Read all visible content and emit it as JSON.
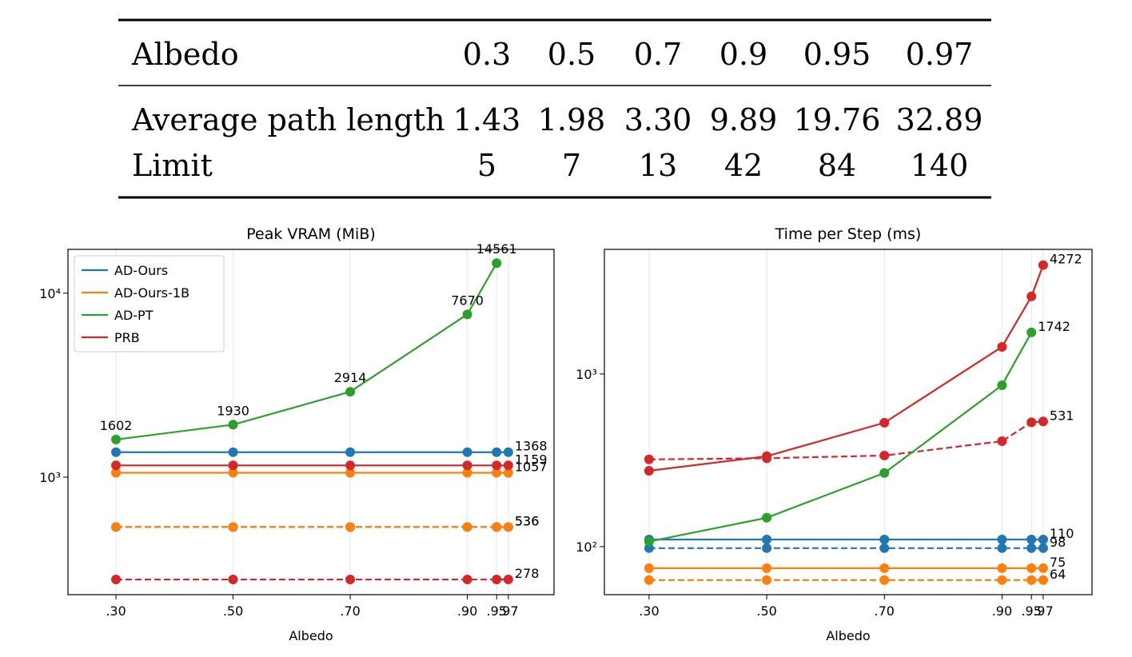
{
  "table": {
    "header": [
      "Albedo",
      "0.3",
      "0.5",
      "0.7",
      "0.9",
      "0.95",
      "0.97"
    ],
    "rows": [
      [
        "Average path length",
        "1.43",
        "1.98",
        "3.30",
        "9.89",
        "19.76",
        "32.89"
      ],
      [
        "Limit",
        "5",
        "7",
        "13",
        "42",
        "84",
        "140"
      ]
    ]
  },
  "chart_data": [
    {
      "type": "line",
      "title": "Peak VRAM (MiB)",
      "xlabel": "Albedo",
      "x": [
        0.3,
        0.5,
        0.7,
        0.9,
        0.95,
        0.97
      ],
      "xlim": [
        0.218,
        1.048
      ],
      "xticks": [
        {
          "value": 0.3,
          "label": ".30"
        },
        {
          "value": 0.5,
          "label": ".50"
        },
        {
          "value": 0.7,
          "label": ".70"
        },
        {
          "value": 0.9,
          "label": ".90"
        },
        {
          "value": 0.95,
          "label": ".95"
        },
        {
          "value": 0.97,
          "label": ".97"
        }
      ],
      "yscale": "log",
      "ylim": [
        230,
        17300
      ],
      "yticks": [
        {
          "value": 1000,
          "label": "10³"
        },
        {
          "value": 10000,
          "label": "10⁴"
        }
      ],
      "grid": "x",
      "legend": "upper left",
      "series": [
        {
          "name": "AD-Ours",
          "color": "#1f77b4",
          "linestyle": "solid",
          "data_labels": "last",
          "values": [
            1368,
            1368,
            1368,
            1368,
            1368,
            1368
          ]
        },
        {
          "name": "AD-Ours-1B",
          "color": "#ff7f0e",
          "linestyle": "solid",
          "data_labels": "last",
          "values": [
            1057,
            1057,
            1057,
            1057,
            1057,
            1057
          ]
        },
        {
          "name": "AD-PT",
          "color": "#2ca02c",
          "linestyle": "solid",
          "data_labels": "all",
          "values": [
            1602,
            1930,
            2914,
            7670,
            14561,
            null
          ]
        },
        {
          "name": "PRB",
          "color": "#d62728",
          "linestyle": "solid",
          "data_labels": "last",
          "values": [
            1159,
            1159,
            1159,
            1159,
            1159,
            1159
          ]
        },
        {
          "color": "#1f77b4",
          "linestyle": "dashed",
          "data_labels": "last",
          "values": [
            536,
            536,
            536,
            536,
            536,
            536
          ]
        },
        {
          "color": "#ff7f0e",
          "linestyle": "dashed",
          "data_labels": "last",
          "values": [
            536,
            536,
            536,
            536,
            536,
            536
          ]
        },
        {
          "color": "#d62728",
          "linestyle": "dashed",
          "data_labels": "last",
          "values": [
            278,
            278,
            278,
            278,
            278,
            278
          ]
        }
      ]
    },
    {
      "type": "line",
      "title": "Time per Step (ms)",
      "xlabel": "Albedo",
      "x": [
        0.3,
        0.5,
        0.7,
        0.9,
        0.95,
        0.97
      ],
      "xlim": [
        0.224,
        1.053
      ],
      "xticks": [
        {
          "value": 0.3,
          "label": ".30"
        },
        {
          "value": 0.5,
          "label": ".50"
        },
        {
          "value": 0.7,
          "label": ".70"
        },
        {
          "value": 0.9,
          "label": ".90"
        },
        {
          "value": 0.95,
          "label": ".95"
        },
        {
          "value": 0.97,
          "label": ".97"
        }
      ],
      "yscale": "log",
      "ylim": [
        52.7,
        5270
      ],
      "yticks": [
        {
          "value": 100,
          "label": "10²"
        },
        {
          "value": 1000,
          "label": "10³"
        }
      ],
      "grid": "x",
      "series": [
        {
          "color": "#1f77b4",
          "linestyle": "solid",
          "data_labels": "last",
          "values": [
            110,
            110,
            110,
            110,
            110,
            110
          ]
        },
        {
          "color": "#1f77b4",
          "linestyle": "dashed",
          "data_labels": "last",
          "values": [
            98,
            98,
            98,
            98,
            98,
            98
          ]
        },
        {
          "color": "#ff7f0e",
          "linestyle": "solid",
          "data_labels": "last",
          "values": [
            75,
            75,
            75,
            75,
            75,
            75
          ]
        },
        {
          "color": "#ff7f0e",
          "linestyle": "dashed",
          "data_labels": "last",
          "values": [
            64,
            64,
            64,
            64,
            64,
            64
          ]
        },
        {
          "color": "#2ca02c",
          "linestyle": "solid",
          "data_labels": "last",
          "values": [
            107,
            147,
            267,
            861,
            1742,
            null
          ]
        },
        {
          "color": "#d62728",
          "linestyle": "solid",
          "data_labels": "last",
          "values": [
            275,
            334,
            522,
            1436,
            2812,
            4272
          ]
        },
        {
          "color": "#d62728",
          "linestyle": "dashed",
          "data_labels": "last",
          "values": [
            320,
            325,
            337,
            408,
            525,
            531
          ]
        }
      ]
    }
  ]
}
